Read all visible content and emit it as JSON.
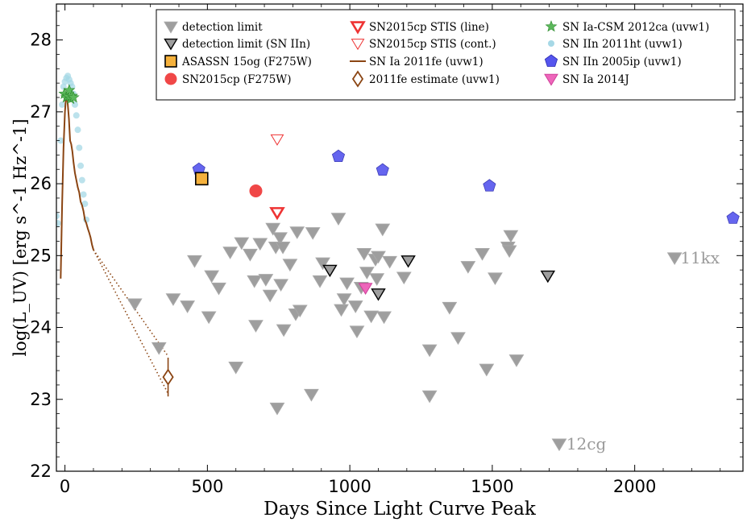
{
  "chart_data": {
    "type": "scatter",
    "title": "",
    "xlabel": "Days Since Light Curve Peak",
    "ylabel": "log(L_UV) [erg s^-1 Hz^-1]",
    "xlim": [
      -30,
      2380
    ],
    "ylim": [
      22,
      28.5
    ],
    "x_ticks": [
      0,
      500,
      1000,
      1500,
      2000
    ],
    "y_ticks": [
      22,
      23,
      24,
      25,
      26,
      27,
      28
    ],
    "grid": false,
    "legend_position": "top-right",
    "colors": {
      "detection_limit": "#9e9e9e",
      "sn_iin_limit": "#9e9e9e",
      "asassn": "#f5b13c",
      "sn2015cp_f275w": "#ee3333",
      "stis_line": "#ee3333",
      "stis_cont": "#ee3333",
      "sn2011fe": "#8b4513",
      "sn2011fe_estimate": "#8b4513",
      "ca_csm": "#5bb85b",
      "sn2011ht": "#a6d8e6",
      "sn2005ip": "#5555ee",
      "sn2014j": "#ee66bb"
    },
    "legend": [
      {
        "key": "detection_limit",
        "label": "detection limit"
      },
      {
        "key": "sn_iin_limit",
        "label": "detection limit (SN IIn)"
      },
      {
        "key": "asassn",
        "label": "ASASSN 15og (F275W)"
      },
      {
        "key": "sn2015cp_f275w",
        "label": "SN2015cp (F275W)"
      },
      {
        "key": "stis_line",
        "label": "SN2015cp STIS (line)"
      },
      {
        "key": "stis_cont",
        "label": "SN2015cp STIS (cont.)"
      },
      {
        "key": "sn2011fe",
        "label": "SN Ia 2011fe (uvw1)"
      },
      {
        "key": "sn2011fe_estimate",
        "label": "2011fe estimate (uvw1)"
      },
      {
        "key": "ca_csm",
        "label": "SN Ia-CSM 2012ca (uvw1)"
      },
      {
        "key": "sn2011ht",
        "label": "SN IIn 2011ht (uvw1)"
      },
      {
        "key": "sn2005ip",
        "label": "SN IIn 2005ip (uvw1)"
      },
      {
        "key": "sn2014j",
        "label": "SN Ia 2014J"
      }
    ],
    "series": {
      "detection_limit": [
        [
          245,
          24.33
        ],
        [
          330,
          23.72
        ],
        [
          380,
          24.4
        ],
        [
          430,
          24.3
        ],
        [
          455,
          24.93
        ],
        [
          505,
          24.15
        ],
        [
          515,
          24.72
        ],
        [
          540,
          24.55
        ],
        [
          580,
          25.05
        ],
        [
          600,
          23.45
        ],
        [
          620,
          25.18
        ],
        [
          650,
          25.02
        ],
        [
          665,
          24.65
        ],
        [
          670,
          24.03
        ],
        [
          685,
          25.17
        ],
        [
          705,
          24.67
        ],
        [
          720,
          24.45
        ],
        [
          730,
          25.38
        ],
        [
          740,
          25.12
        ],
        [
          745,
          22.88
        ],
        [
          755,
          25.25
        ],
        [
          758,
          24.6
        ],
        [
          765,
          25.12
        ],
        [
          768,
          23.97
        ],
        [
          790,
          24.88
        ],
        [
          810,
          24.19
        ],
        [
          815,
          25.33
        ],
        [
          825,
          24.24
        ],
        [
          865,
          23.07
        ],
        [
          870,
          25.32
        ],
        [
          895,
          24.65
        ],
        [
          905,
          24.9
        ],
        [
          960,
          25.52
        ],
        [
          970,
          24.25
        ],
        [
          980,
          24.4
        ],
        [
          990,
          24.62
        ],
        [
          1020,
          24.3
        ],
        [
          1025,
          23.95
        ],
        [
          1040,
          24.56
        ],
        [
          1050,
          25.03
        ],
        [
          1060,
          24.77
        ],
        [
          1075,
          24.16
        ],
        [
          1090,
          24.95
        ],
        [
          1095,
          24.68
        ],
        [
          1100,
          24.99
        ],
        [
          1115,
          25.37
        ],
        [
          1120,
          24.15
        ],
        [
          1140,
          24.92
        ],
        [
          1190,
          24.7
        ],
        [
          1280,
          23.69
        ],
        [
          1280,
          23.05
        ],
        [
          1350,
          24.28
        ],
        [
          1380,
          23.86
        ],
        [
          1415,
          24.85
        ],
        [
          1465,
          25.03
        ],
        [
          1480,
          23.42
        ],
        [
          1510,
          24.69
        ],
        [
          1555,
          25.12
        ],
        [
          1560,
          25.07
        ],
        [
          1565,
          25.28
        ],
        [
          1585,
          23.55
        ],
        [
          1735,
          22.38
        ],
        [
          2140,
          24.97
        ]
      ],
      "sn_iin_limit": [
        [
          930,
          24.8
        ],
        [
          1100,
          24.47
        ],
        [
          1205,
          24.93
        ],
        [
          1695,
          24.72
        ]
      ],
      "asassn": [
        [
          480,
          26.07
        ]
      ],
      "sn2015cp_f275w": [
        [
          670,
          25.9
        ]
      ],
      "stis_line": [
        [
          745,
          25.6
        ]
      ],
      "stis_cont": [
        [
          745,
          26.62
        ]
      ],
      "sn2011fe": [
        [
          -15,
          24.68
        ],
        [
          -10,
          25.7
        ],
        [
          -5,
          26.5
        ],
        [
          0,
          27.0
        ],
        [
          5,
          27.28
        ],
        [
          10,
          27.1
        ],
        [
          14,
          26.9
        ],
        [
          18,
          26.6
        ],
        [
          22,
          26.55
        ],
        [
          26,
          26.45
        ],
        [
          30,
          26.3
        ],
        [
          35,
          26.15
        ],
        [
          40,
          26.05
        ],
        [
          45,
          25.95
        ],
        [
          50,
          25.88
        ],
        [
          55,
          25.75
        ],
        [
          60,
          25.7
        ],
        [
          65,
          25.62
        ],
        [
          70,
          25.5
        ],
        [
          75,
          25.45
        ],
        [
          80,
          25.38
        ],
        [
          85,
          25.32
        ],
        [
          90,
          25.25
        ],
        [
          95,
          25.15
        ],
        [
          100,
          25.08
        ]
      ],
      "sn2011fe_extrapolation_upper": [
        [
          100,
          25.08
        ],
        [
          362,
          23.6
        ]
      ],
      "sn2011fe_extrapolation_lower": [
        [
          100,
          25.08
        ],
        [
          362,
          23.08
        ]
      ],
      "sn2011fe_estimate": [
        {
          "x": 362,
          "y": 23.31,
          "yerr_low": 23.04,
          "yerr_high": 23.58
        }
      ],
      "ca_csm": [
        [
          -2,
          27.25
        ],
        [
          5,
          27.2
        ],
        [
          10,
          27.22
        ],
        [
          15,
          27.3
        ],
        [
          20,
          27.18
        ],
        [
          25,
          27.22
        ],
        [
          30,
          27.2
        ]
      ],
      "sn2011ht": [
        [
          -30,
          25.55
        ],
        [
          -25,
          25.45
        ],
        [
          -15,
          26.6
        ],
        [
          -10,
          27.1
        ],
        [
          -5,
          27.35
        ],
        [
          0,
          27.42
        ],
        [
          5,
          27.47
        ],
        [
          10,
          27.5
        ],
        [
          15,
          27.45
        ],
        [
          20,
          27.4
        ],
        [
          25,
          27.35
        ],
        [
          30,
          27.25
        ],
        [
          35,
          27.1
        ],
        [
          40,
          26.95
        ],
        [
          45,
          26.75
        ],
        [
          50,
          26.5
        ],
        [
          55,
          26.25
        ],
        [
          60,
          26.05
        ],
        [
          65,
          25.85
        ],
        [
          70,
          25.72
        ],
        [
          75,
          25.5
        ]
      ],
      "sn2005ip": [
        [
          470,
          26.2
        ],
        [
          960,
          26.38
        ],
        [
          1115,
          26.19
        ],
        [
          1490,
          25.97
        ],
        [
          2345,
          25.52
        ]
      ],
      "sn2014j": [
        [
          1055,
          24.55
        ]
      ]
    },
    "annotations": [
      {
        "text": "11kx",
        "x": 2160,
        "y": 24.97
      },
      {
        "text": "12cg",
        "x": 1760,
        "y": 22.38
      }
    ]
  }
}
